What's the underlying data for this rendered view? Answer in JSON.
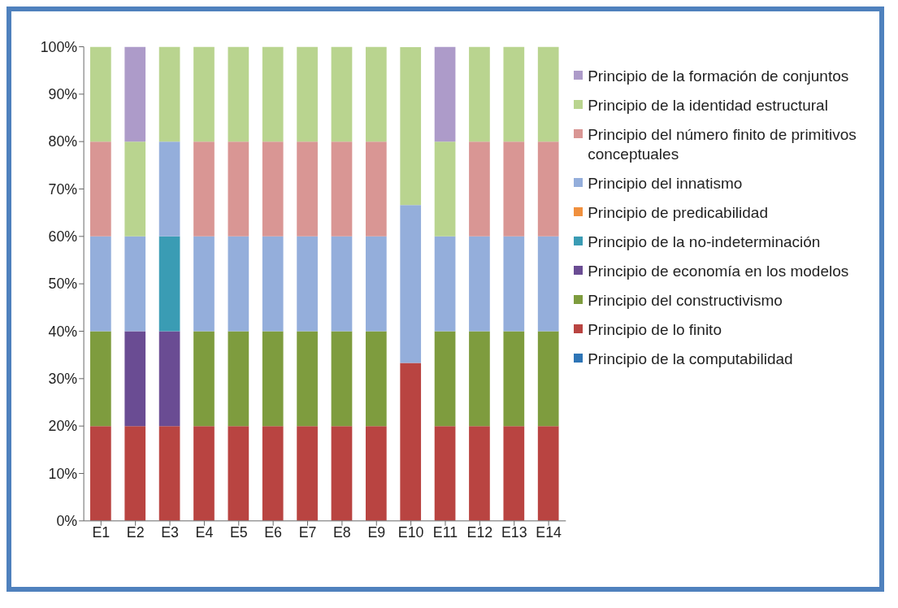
{
  "chart_data": {
    "type": "bar",
    "stacked": true,
    "legend": "right",
    "categories": [
      "E1",
      "E2",
      "E3",
      "E4",
      "E5",
      "E6",
      "E7",
      "E8",
      "E9",
      "E10",
      "E11",
      "E12",
      "E13",
      "E14"
    ],
    "ylim": [
      0,
      100
    ],
    "yticks": [
      {
        "value": 0,
        "label": "0%"
      },
      {
        "value": 10,
        "label": "10%"
      },
      {
        "value": 20,
        "label": "20%"
      },
      {
        "value": 30,
        "label": "30%"
      },
      {
        "value": 40,
        "label": "40%"
      },
      {
        "value": 50,
        "label": "50%"
      },
      {
        "value": 60,
        "label": "60%"
      },
      {
        "value": 70,
        "label": "70%"
      },
      {
        "value": 80,
        "label": "80%"
      },
      {
        "value": 90,
        "label": "90%"
      },
      {
        "value": 100,
        "label": "100%"
      }
    ],
    "series": [
      {
        "name": "Principio de la computabilidad",
        "color": "#2e75b6",
        "values": [
          0,
          0,
          0,
          0,
          0,
          0,
          0,
          0,
          0,
          0,
          0,
          0,
          0,
          0
        ]
      },
      {
        "name": "Principio de lo finito",
        "color": "#b94441",
        "values": [
          20,
          20,
          20,
          20,
          20,
          20,
          20,
          20,
          20,
          33.3,
          20,
          20,
          20,
          20
        ]
      },
      {
        "name": "Principio del constructivismo",
        "color": "#7e9c3e",
        "values": [
          20,
          0,
          0,
          20,
          20,
          20,
          20,
          20,
          20,
          0,
          20,
          20,
          20,
          20
        ]
      },
      {
        "name": "Principio de economía en los modelos",
        "color": "#6a4c93",
        "values": [
          0,
          20,
          20,
          0,
          0,
          0,
          0,
          0,
          0,
          0,
          0,
          0,
          0,
          0
        ]
      },
      {
        "name": "Principio de la no-indeterminación",
        "color": "#3a9cb4",
        "values": [
          0,
          0,
          20,
          0,
          0,
          0,
          0,
          0,
          0,
          0,
          0,
          0,
          0,
          0
        ]
      },
      {
        "name": "Principio de predicabilidad",
        "color": "#f0903e",
        "values": [
          0,
          0,
          0,
          0,
          0,
          0,
          0,
          0,
          0,
          0,
          0,
          0,
          0,
          0
        ]
      },
      {
        "name": "Principio del innatismo",
        "color": "#94aedb",
        "values": [
          20,
          20,
          20,
          20,
          20,
          20,
          20,
          20,
          20,
          33.3,
          20,
          20,
          20,
          20
        ]
      },
      {
        "name": "Principio del número finito de primitivos conceptuales",
        "color": "#d99694",
        "values": [
          20,
          0,
          0,
          20,
          20,
          20,
          20,
          20,
          20,
          0,
          0,
          20,
          20,
          20
        ]
      },
      {
        "name": "Principio de la identidad estructural",
        "color": "#b9d48f",
        "values": [
          20,
          20,
          20,
          20,
          20,
          20,
          20,
          20,
          20,
          33.3,
          20,
          20,
          20,
          20
        ]
      },
      {
        "name": "Principio de la formación de conjuntos",
        "color": "#ad9bc9",
        "values": [
          0,
          20,
          0,
          0,
          0,
          0,
          0,
          0,
          0,
          0,
          20,
          0,
          0,
          0
        ]
      }
    ]
  }
}
